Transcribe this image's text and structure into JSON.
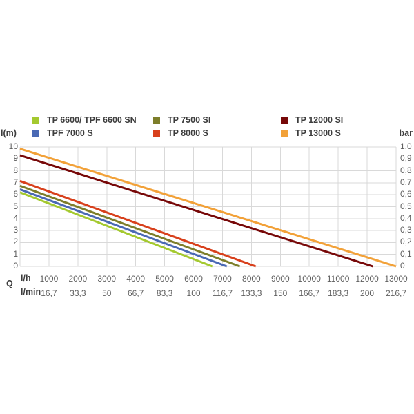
{
  "chart_data": {
    "type": "line",
    "title": "",
    "flow_symbol": "Q",
    "xlabel_primary": "l/h",
    "xlabel_secondary": "l/min",
    "ylabel_left": "l(m)",
    "ylabel_right": "bar",
    "xlim_lh": [
      0,
      13000
    ],
    "ylim_m": [
      0,
      10
    ],
    "grid": true,
    "legend_position": "top",
    "x_ticks_lh": [
      "1000",
      "2000",
      "3000",
      "4000",
      "5000",
      "6000",
      "7000",
      "8000",
      "9000",
      "10000",
      "11000",
      "12000",
      "13000"
    ],
    "x_ticks_lmin": [
      "16,7",
      "33,3",
      "50",
      "66,7",
      "83,3",
      "100",
      "116,7",
      "133,3",
      "150",
      "166,7",
      "183,3",
      "200",
      "216,7"
    ],
    "y_ticks_m": [
      "10",
      "9",
      "8",
      "7",
      "6",
      "5",
      "4",
      "3",
      "2",
      "1",
      "0"
    ],
    "y_ticks_bar": [
      "1,0",
      "0,9",
      "0,8",
      "0,7",
      "0,6",
      "0,5",
      "0,4",
      "0,3",
      "0,2",
      "0,1",
      "0"
    ],
    "series": [
      {
        "name": "TP 6600/ TPF 6600 SN",
        "slug": "tp-6600-tpf-6600-sn",
        "color": "#a4c92f",
        "head_m_at_zero_flow": 6.2,
        "max_flow_lh": 6650
      },
      {
        "name": "TPF 7000 S",
        "slug": "tpf-7000-s",
        "color": "#4a69b4",
        "head_m_at_zero_flow": 6.45,
        "max_flow_lh": 7150
      },
      {
        "name": "TP 7500 SI",
        "slug": "tp-7500-si",
        "color": "#7d7e2a",
        "head_m_at_zero_flow": 6.75,
        "max_flow_lh": 7600
      },
      {
        "name": "TP 8000 S",
        "slug": "tp-8000-s",
        "color": "#d8401c",
        "head_m_at_zero_flow": 7.15,
        "max_flow_lh": 8150
      },
      {
        "name": "TP 12000 SI",
        "slug": "tp-12000-si",
        "color": "#770808",
        "head_m_at_zero_flow": 9.3,
        "max_flow_lh": 12200
      },
      {
        "name": "TP 13000 S",
        "slug": "tp-13000-s",
        "color": "#f2a138",
        "head_m_at_zero_flow": 9.85,
        "max_flow_lh": 13000
      }
    ],
    "legend_columns": [
      [
        0,
        1
      ],
      [
        2,
        3
      ],
      [
        4,
        5
      ]
    ]
  },
  "colors": {
    "background": "#ffffff",
    "gridline": "#d9d9d9",
    "divider": "#cfcfcf",
    "tick_text": "#5f5f5f",
    "label_text": "#3d3d3d"
  }
}
